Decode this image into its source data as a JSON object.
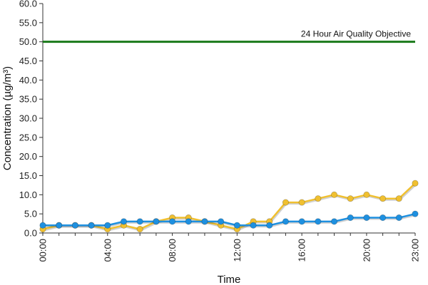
{
  "chart_data": {
    "type": "line",
    "title": "",
    "xlabel": "Time",
    "ylabel": "Concentration (µg/m³)",
    "ylim": [
      0,
      60
    ],
    "y_ticks": [
      "0.0",
      "5.0",
      "10.0",
      "15.0",
      "20.0",
      "25.0",
      "30.0",
      "35.0",
      "40.0",
      "45.0",
      "50.0",
      "55.0",
      "60.0"
    ],
    "x_hours": [
      0,
      1,
      2,
      3,
      4,
      5,
      6,
      7,
      8,
      9,
      10,
      11,
      12,
      13,
      14,
      15,
      16,
      17,
      18,
      19,
      20,
      21,
      22,
      23
    ],
    "x_tick_labels": [
      "00:00",
      "04:00",
      "08:00",
      "12:00",
      "16:00",
      "20:00",
      "23:00"
    ],
    "x_tick_hours": [
      0,
      4,
      8,
      12,
      16,
      20,
      23
    ],
    "grid": false,
    "legend": "none",
    "series": [
      {
        "color": "#f0c030",
        "values": [
          1,
          2,
          2,
          2,
          1,
          2,
          1,
          3,
          4,
          4,
          3,
          2,
          1,
          3,
          3,
          8,
          8,
          9,
          10,
          9,
          10,
          9,
          9,
          13
        ]
      },
      {
        "color": "#1e90e0",
        "values": [
          2,
          2,
          2,
          2,
          2,
          3,
          3,
          3,
          3,
          3,
          3,
          3,
          2,
          2,
          2,
          3,
          3,
          3,
          3,
          4,
          4,
          4,
          4,
          5
        ]
      }
    ],
    "reference_line": {
      "value": 50,
      "label": "24 Hour Air Quality Objective",
      "color": "#1a7a1a"
    }
  }
}
